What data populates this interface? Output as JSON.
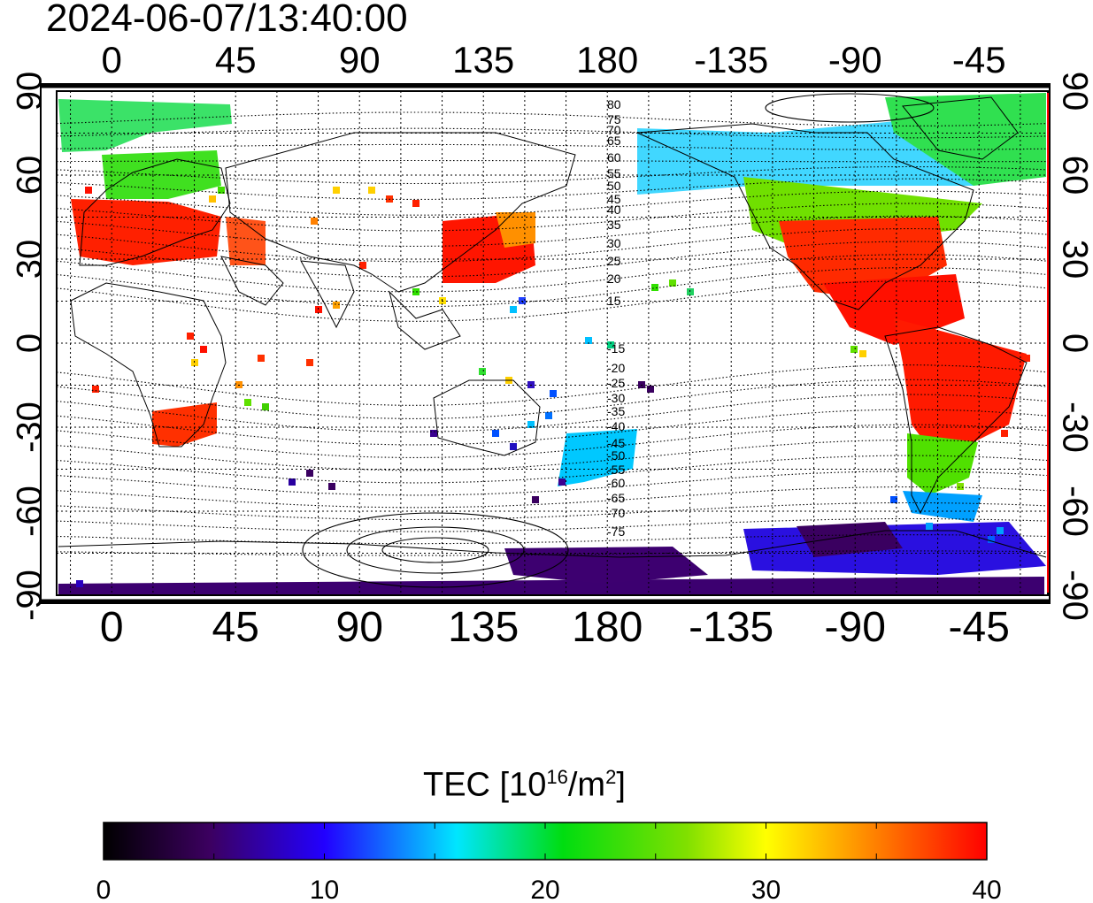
{
  "title": "2024-06-07/13:40:00",
  "map": {
    "lon_ticks_top": [
      "0",
      "45",
      "90",
      "135",
      "180",
      "-135",
      "-90",
      "-45"
    ],
    "lon_ticks_bottom": [
      "0",
      "45",
      "90",
      "135",
      "180",
      "-135",
      "-90",
      "-45"
    ],
    "lat_ticks_left": [
      "90",
      "60",
      "30",
      "0",
      "-30",
      "-60",
      "-90"
    ],
    "lat_ticks_right": [
      "90",
      "60",
      "30",
      "0",
      "-30",
      "-60",
      "-90"
    ],
    "magnetic_lat_labels": [
      "80",
      "75",
      "70",
      "65",
      "60",
      "55",
      "50",
      "45",
      "40",
      "35",
      "30",
      "25",
      "20",
      "15",
      "-15",
      "-20",
      "-25",
      "-30",
      "-35",
      "-40",
      "-45",
      "-50",
      "-55",
      "-60",
      "-65",
      "-70",
      "-75"
    ],
    "lon_range": [
      -20,
      340
    ],
    "lat_range": [
      -90,
      90
    ]
  },
  "colorbar": {
    "title_prefix": "TEC  [10",
    "title_exp1": "16",
    "title_mid": "/m",
    "title_exp2": "2",
    "title_suffix": "]",
    "ticks": [
      "0",
      "10",
      "20",
      "30",
      "40"
    ],
    "range": [
      0,
      40
    ],
    "colormap": [
      "#000000",
      "#3a005a",
      "#1a00ff",
      "#00d0ff",
      "#00e000",
      "#ffff00",
      "#ff8000",
      "#ff0000"
    ]
  }
}
